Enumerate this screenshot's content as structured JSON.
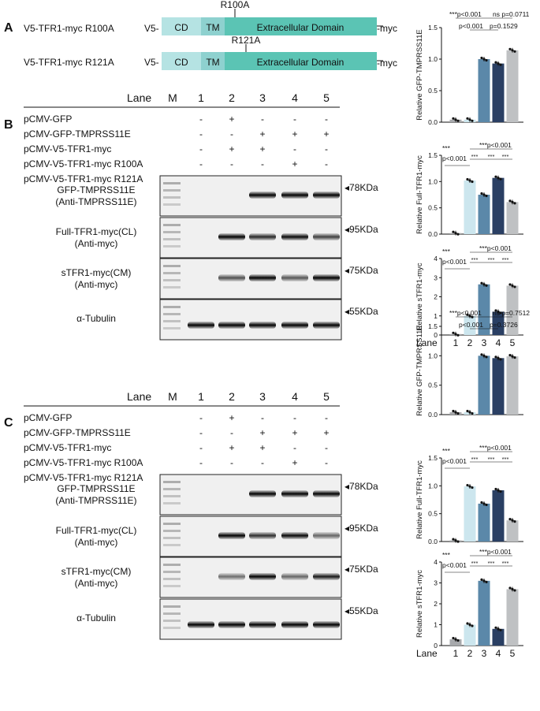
{
  "panels": {
    "A": "A",
    "B": "B",
    "C": "C"
  },
  "constructs": [
    {
      "name": "V5-TFR1-myc R100A",
      "mutation": "R100A"
    },
    {
      "name": "V5-TFR1-myc R121A",
      "mutation": "R121A"
    }
  ],
  "domain_labels": {
    "v5": "V5-",
    "cd": "CD",
    "tm": "TM",
    "ecd": "Extracellular Domain",
    "myc": "-myc"
  },
  "lane_header": "Lane",
  "marker_lane": "M",
  "lanes": [
    "1",
    "2",
    "3",
    "4",
    "5"
  ],
  "conditions": [
    {
      "label": "pCMV-GFP",
      "signs": [
        "-",
        "+",
        "-",
        "-",
        "-"
      ]
    },
    {
      "label": "pCMV-GFP-TMPRSS11E",
      "signs": [
        "-",
        "-",
        "+",
        "+",
        "+"
      ]
    },
    {
      "label": "pCMV-V5-TFR1-myc",
      "signs": [
        "-",
        "+",
        "+",
        "-",
        "-"
      ]
    },
    {
      "label": "pCMV-V5-TFR1-myc R100A",
      "signs": [
        "-",
        "-",
        "-",
        "+",
        "-"
      ]
    },
    {
      "label": "pCMV-V5-TFR1-myc R121A",
      "signs": [
        "-",
        "-",
        "-",
        "-",
        "+"
      ]
    }
  ],
  "blots": [
    {
      "label1": "GFP-TMPRSS11E",
      "label2": "(Anti-TMPRSS11E)",
      "kda": "◂78KDa"
    },
    {
      "label1": "Full-TFR1-myc(CL)",
      "label2": "(Anti-myc)",
      "kda": "◂95KDa"
    },
    {
      "label1": "sTFR1-myc(CM)",
      "label2": "(Anti-myc)",
      "kda": "◂75KDa"
    },
    {
      "label1": "α-Tubulin",
      "label2": "",
      "kda": "◂55KDa"
    }
  ],
  "band_intensity": {
    "B": [
      [
        0,
        0,
        1,
        1,
        1
      ],
      [
        0,
        1,
        0.75,
        0.95,
        0.6
      ],
      [
        0,
        0.5,
        1,
        0.45,
        1
      ],
      [
        1,
        1,
        1,
        1,
        1
      ]
    ],
    "C": [
      [
        0,
        0,
        1,
        1,
        1
      ],
      [
        0,
        1,
        0.7,
        0.95,
        0.35
      ],
      [
        0,
        0.3,
        1,
        0.35,
        0.85
      ],
      [
        1,
        1,
        1,
        1,
        1
      ]
    ]
  },
  "colors": {
    "lane1": "#a7a9ac",
    "lane2": "#cce6ee",
    "lane3": "#5b88a9",
    "lane4": "#2a3f63",
    "lane5": "#bfc1c3",
    "cd": "#b5e3e3",
    "tm": "#8ed1cf",
    "ecd": "#5bc4b4"
  },
  "chart_data": [
    {
      "type": "bar",
      "panel": "B",
      "ylabel": "Relative GFP-TMPRSS11E",
      "categories": [
        "1",
        "2",
        "3",
        "4",
        "5"
      ],
      "values": [
        0.04,
        0.04,
        1.0,
        0.93,
        1.14
      ],
      "ylim": [
        0,
        1.5
      ],
      "yticks": [
        "0.0",
        "0.5",
        "1.0",
        "1.5"
      ],
      "xlabel": "",
      "annotations": [
        "***p<0.001",
        "ns p=0.0711",
        "p<0.001",
        "p=0.1529"
      ]
    },
    {
      "type": "bar",
      "panel": "B",
      "ylabel": "Relative Full-TFR1-myc",
      "categories": [
        "1",
        "2",
        "3",
        "4",
        "5"
      ],
      "values": [
        0.02,
        1.02,
        0.75,
        1.07,
        0.61
      ],
      "ylim": [
        0,
        1.5
      ],
      "yticks": [
        "0.0",
        "0.5",
        "1.0",
        "1.5"
      ],
      "xlabel": "",
      "annotations": [
        "***",
        "p<0.001",
        "***p<0.001",
        "***",
        "***",
        "***"
      ]
    },
    {
      "type": "bar",
      "panel": "B",
      "ylabel": "Relative sTFR1-myc",
      "categories": [
        "1",
        "2",
        "3",
        "4",
        "5"
      ],
      "values": [
        0.05,
        1.0,
        2.65,
        1.22,
        2.58
      ],
      "ylim": [
        0,
        4
      ],
      "yticks": [
        "0",
        "1",
        "2",
        "3",
        "4"
      ],
      "xlabel": "Lane",
      "annotations": [
        "***",
        "p<0.001",
        "***p<0.001",
        "***",
        "***",
        "***"
      ]
    },
    {
      "type": "bar",
      "panel": "C",
      "ylabel": "Relative GFP-TMPRSS11E",
      "categories": [
        "1",
        "2",
        "3",
        "4",
        "5"
      ],
      "values": [
        0.04,
        0.04,
        1.0,
        0.96,
        0.99
      ],
      "ylim": [
        0,
        1.5
      ],
      "yticks": [
        "0.0",
        "0.5",
        "1.0",
        "1.5"
      ],
      "xlabel": "",
      "annotations": [
        "***p<0.001",
        "ns p=0.7512",
        "p<0.001",
        "p=0.3726"
      ]
    },
    {
      "type": "bar",
      "panel": "C",
      "ylabel": "Relative Full-TFR1-myc",
      "categories": [
        "1",
        "2",
        "3",
        "4",
        "5"
      ],
      "values": [
        0.02,
        0.99,
        0.68,
        0.92,
        0.38
      ],
      "ylim": [
        0,
        1.5
      ],
      "yticks": [
        "0.0",
        "0.5",
        "1.0",
        "1.5"
      ],
      "xlabel": "",
      "annotations": [
        "***",
        "p<0.001",
        "***p<0.001",
        "***",
        "***",
        "***"
      ]
    },
    {
      "type": "bar",
      "panel": "C",
      "ylabel": "Relative sTFR1-myc",
      "categories": [
        "1",
        "2",
        "3",
        "4",
        "5"
      ],
      "values": [
        0.3,
        1.0,
        3.1,
        0.8,
        2.7
      ],
      "ylim": [
        0,
        4
      ],
      "yticks": [
        "0",
        "1",
        "2",
        "3",
        "4"
      ],
      "xlabel": "Lane",
      "annotations": [
        "***",
        "p<0.001",
        "***p<0.001",
        "***",
        "***",
        "***"
      ]
    }
  ]
}
